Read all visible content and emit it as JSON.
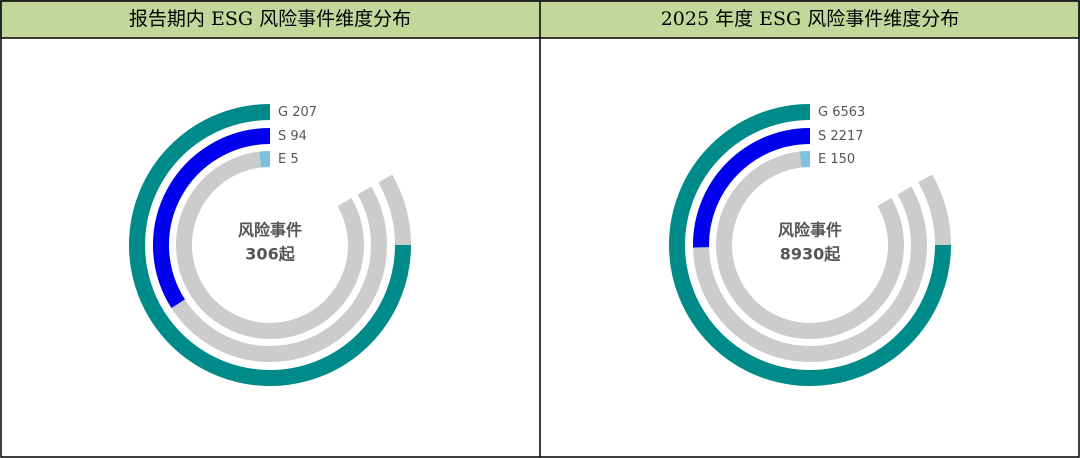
{
  "chart_data": [
    {
      "type": "radialBar",
      "title": "报告期内 ESG 风险事件维度分布",
      "categories": [
        "G",
        "S",
        "E"
      ],
      "values": [
        207,
        94,
        5
      ],
      "colors": [
        "#008b8b",
        "#0000ee",
        "#7ec0e0"
      ],
      "track_color": "#cccccc",
      "alim": [
        0,
        230
      ],
      "center_text": [
        "风险事件",
        "306起"
      ]
    },
    {
      "type": "radialBar",
      "title": "2025 年度 ESG 风险事件维度分布",
      "categories": [
        "G",
        "S",
        "E"
      ],
      "values": [
        6563,
        2217,
        150
      ],
      "colors": [
        "#008b8b",
        "#0000ee",
        "#7ec0e0"
      ],
      "track_color": "#cccccc",
      "alim": [
        0,
        7292
      ],
      "center_text": [
        "风险事件",
        "8930起"
      ]
    }
  ]
}
